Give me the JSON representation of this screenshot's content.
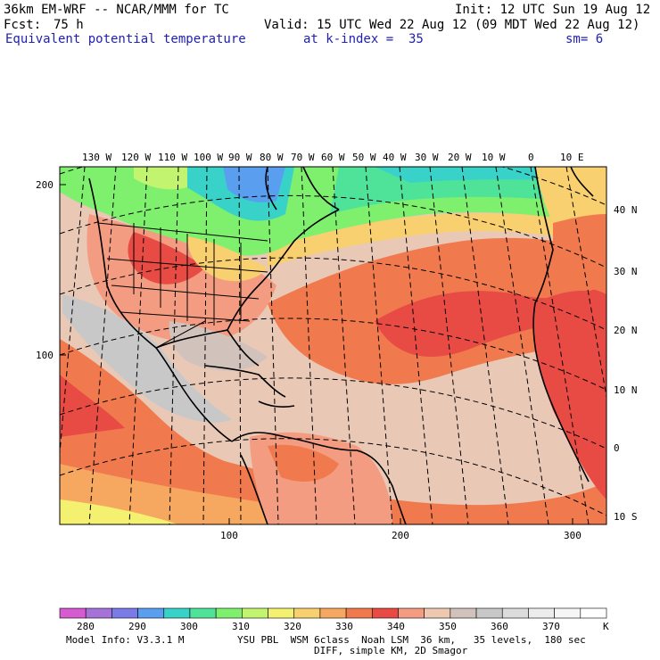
{
  "header": {
    "model": "36km EM-WRF -- NCAR/MMM for TC",
    "init": "Init: 12 UTC Sun 19 Aug 12",
    "fcst_label": "Fcst:",
    "fcst_value": "75 h",
    "valid": "Valid: 15 UTC Wed 22 Aug 12 (09 MDT Wed 22 Aug 12)",
    "field": "Equivalent potential temperature",
    "level": "at k-index =  35",
    "smoothing": "sm= 6"
  },
  "map": {
    "top_lon_labels": [
      "130 W",
      "120 W",
      "110 W",
      "100 W",
      "90 W",
      "80 W",
      "70 W",
      "60 W",
      "50 W",
      "40 W",
      "30 W",
      "20 W",
      "10 W",
      "0",
      "10 E"
    ],
    "right_lat_labels": [
      "40 N",
      "30 N",
      "20 N",
      "10 N",
      "0",
      "10 S"
    ],
    "left_grid_labels": [
      "200",
      "100"
    ],
    "bottom_grid_labels": [
      "100",
      "200",
      "300"
    ]
  },
  "colorbar": {
    "labels": [
      "280",
      "290",
      "300",
      "310",
      "320",
      "330",
      "340",
      "350",
      "360",
      "370"
    ],
    "unit": "K",
    "colors": [
      "#d65ad0",
      "#a672d8",
      "#7b7be8",
      "#5a9ef0",
      "#38d2c8",
      "#4fe39a",
      "#7ef06e",
      "#c2f470",
      "#f4f070",
      "#f8d070",
      "#f7a860",
      "#f07a4e",
      "#e84a44",
      "#f39c82",
      "#efc8b2",
      "#d2c2bc",
      "#c8c8c8",
      "#dcdcdc",
      "#ececec",
      "#f6f6f6",
      "#ffffff"
    ]
  },
  "footer": {
    "model_info": "Model Info: V3.3.1 M",
    "physics": "YSU PBL  WSM 6class  Noah LSM  36 km,   35 levels,  180 sec",
    "diff": "DIFF, simple KM, 2D Smagor"
  }
}
